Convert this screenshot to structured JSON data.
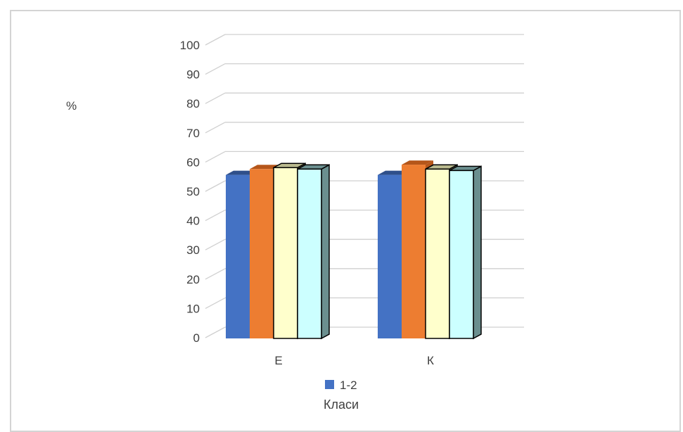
{
  "chart_data": {
    "type": "bar",
    "categories": [
      "Е",
      "К"
    ],
    "series": [
      {
        "values": [
          56,
          56
        ],
        "color": "#4472c4",
        "shade": "#2f4f8a",
        "outlined": false
      },
      {
        "values": [
          58,
          59.5
        ],
        "color": "#ed7d31",
        "shade": "#b5561a",
        "outlined": false
      },
      {
        "values": [
          58.5,
          58
        ],
        "color": "#ffffcc",
        "shade": "#b9b98e",
        "outlined": true
      },
      {
        "values": [
          58,
          57.5
        ],
        "color": "#ccffff",
        "shade": "#6b8f8f",
        "outlined": true
      }
    ],
    "ylabel": "%",
    "xlabel": "Класи",
    "ylim": [
      0,
      100
    ],
    "yticks": [
      0,
      10,
      20,
      30,
      40,
      50,
      60,
      70,
      80,
      90,
      100
    ],
    "grid": true,
    "legend": {
      "position": "bottom",
      "entries": [
        {
          "label": "1-2",
          "color": "#4472c4"
        }
      ]
    }
  }
}
